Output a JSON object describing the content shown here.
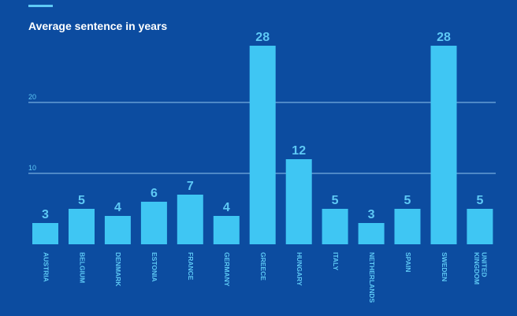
{
  "colors": {
    "background": "#0c4ca0",
    "bar": "#3fc6f3",
    "accent": "#5ec9f5",
    "gridline": "#8fc3ee",
    "title": "#ffffff"
  },
  "chart_data": {
    "type": "bar",
    "title": "Average sentence in years",
    "xlabel": "",
    "ylabel": "",
    "ylim": [
      0,
      30
    ],
    "gridlines": [
      10,
      20
    ],
    "categories": [
      "AUSTRIA",
      "BELGIUM",
      "DENMARK",
      "ESTONIA",
      "FRANCE",
      "GERMANY",
      "GREECE",
      "HUNGARY",
      "ITALY",
      "NETHERLANDS",
      "SPAIN",
      "SWEDEN",
      "UNITED KINGDOM"
    ],
    "values": [
      3,
      5,
      4,
      6,
      7,
      4,
      28,
      12,
      5,
      3,
      5,
      28,
      5
    ],
    "value_labels": [
      "3",
      "5",
      "4",
      "6",
      "7",
      "4",
      "28",
      "12",
      "5",
      "3",
      "5",
      "28",
      "5"
    ]
  }
}
